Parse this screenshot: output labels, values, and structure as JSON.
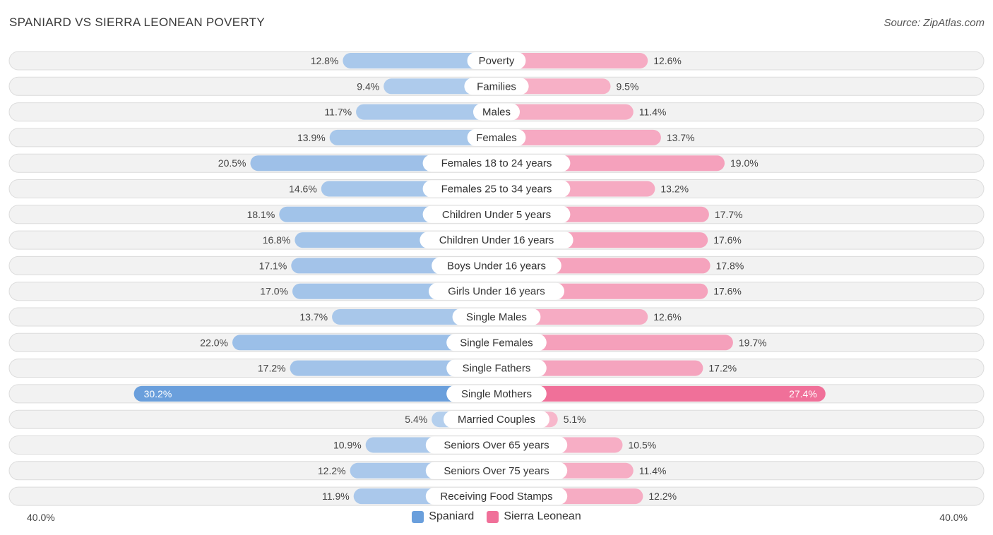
{
  "header": {
    "title": "SPANIARD VS SIERRA LEONEAN POVERTY",
    "source": "Source: ZipAtlas.com"
  },
  "axis": {
    "left_label": "40.0%",
    "right_label": "40.0%"
  },
  "legend": [
    {
      "name": "Spaniard",
      "color": "#6a9fdc"
    },
    {
      "name": "Sierra Leonean",
      "color": "#f07099"
    }
  ],
  "chart_data": {
    "type": "bar",
    "orientation": "diverging-horizontal",
    "title": "SPANIARD VS SIERRA LEONEAN POVERTY",
    "xlim": [
      -40,
      40
    ],
    "unit": "%",
    "categories": [
      "Poverty",
      "Families",
      "Males",
      "Females",
      "Females 18 to 24 years",
      "Females 25 to 34 years",
      "Children Under 5 years",
      "Children Under 16 years",
      "Boys Under 16 years",
      "Girls Under 16 years",
      "Single Males",
      "Single Females",
      "Single Fathers",
      "Single Mothers",
      "Married Couples",
      "Seniors Over 65 years",
      "Seniors Over 75 years",
      "Receiving Food Stamps"
    ],
    "series": [
      {
        "name": "Spaniard",
        "side": "left",
        "values": [
          12.8,
          9.4,
          11.7,
          13.9,
          20.5,
          14.6,
          18.1,
          16.8,
          17.1,
          17.0,
          13.7,
          22.0,
          17.2,
          30.2,
          5.4,
          10.9,
          12.2,
          11.9
        ],
        "labels": [
          "12.8%",
          "9.4%",
          "11.7%",
          "13.9%",
          "20.5%",
          "14.6%",
          "18.1%",
          "16.8%",
          "17.1%",
          "17.0%",
          "13.7%",
          "22.0%",
          "17.2%",
          "30.2%",
          "5.4%",
          "10.9%",
          "12.2%",
          "11.9%"
        ]
      },
      {
        "name": "Sierra Leonean",
        "side": "right",
        "values": [
          12.6,
          9.5,
          11.4,
          13.7,
          19.0,
          13.2,
          17.7,
          17.6,
          17.8,
          17.6,
          12.6,
          19.7,
          17.2,
          27.4,
          5.1,
          10.5,
          11.4,
          12.2
        ],
        "labels": [
          "12.6%",
          "9.5%",
          "11.4%",
          "13.7%",
          "19.0%",
          "13.2%",
          "17.7%",
          "17.6%",
          "17.8%",
          "17.6%",
          "12.6%",
          "19.7%",
          "17.2%",
          "27.4%",
          "5.1%",
          "10.5%",
          "11.4%",
          "12.2%"
        ]
      }
    ]
  }
}
